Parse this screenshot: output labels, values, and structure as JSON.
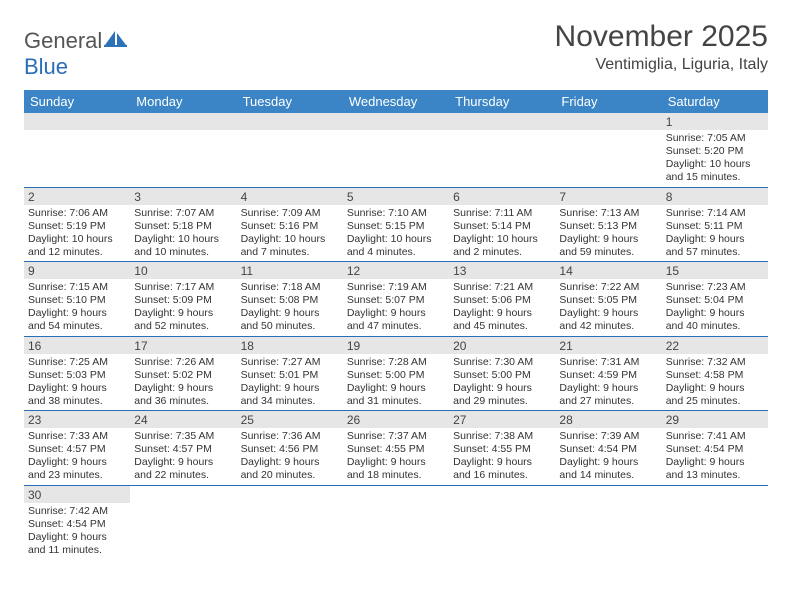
{
  "logo": {
    "general": "General",
    "blue": "Blue"
  },
  "title": "November 2025",
  "location": "Ventimiglia, Liguria, Italy",
  "colors": {
    "header_bg": "#3b85c6",
    "border": "#2a6db8",
    "daynum_bg": "#e6e6e6",
    "text": "#333333"
  },
  "weekdays": [
    "Sunday",
    "Monday",
    "Tuesday",
    "Wednesday",
    "Thursday",
    "Friday",
    "Saturday"
  ],
  "weeks": [
    [
      null,
      null,
      null,
      null,
      null,
      null,
      {
        "d": "1",
        "sr": "7:05 AM",
        "ss": "5:20 PM",
        "dl": "10 hours and 15 minutes."
      }
    ],
    [
      {
        "d": "2",
        "sr": "7:06 AM",
        "ss": "5:19 PM",
        "dl": "10 hours and 12 minutes."
      },
      {
        "d": "3",
        "sr": "7:07 AM",
        "ss": "5:18 PM",
        "dl": "10 hours and 10 minutes."
      },
      {
        "d": "4",
        "sr": "7:09 AM",
        "ss": "5:16 PM",
        "dl": "10 hours and 7 minutes."
      },
      {
        "d": "5",
        "sr": "7:10 AM",
        "ss": "5:15 PM",
        "dl": "10 hours and 4 minutes."
      },
      {
        "d": "6",
        "sr": "7:11 AM",
        "ss": "5:14 PM",
        "dl": "10 hours and 2 minutes."
      },
      {
        "d": "7",
        "sr": "7:13 AM",
        "ss": "5:13 PM",
        "dl": "9 hours and 59 minutes."
      },
      {
        "d": "8",
        "sr": "7:14 AM",
        "ss": "5:11 PM",
        "dl": "9 hours and 57 minutes."
      }
    ],
    [
      {
        "d": "9",
        "sr": "7:15 AM",
        "ss": "5:10 PM",
        "dl": "9 hours and 54 minutes."
      },
      {
        "d": "10",
        "sr": "7:17 AM",
        "ss": "5:09 PM",
        "dl": "9 hours and 52 minutes."
      },
      {
        "d": "11",
        "sr": "7:18 AM",
        "ss": "5:08 PM",
        "dl": "9 hours and 50 minutes."
      },
      {
        "d": "12",
        "sr": "7:19 AM",
        "ss": "5:07 PM",
        "dl": "9 hours and 47 minutes."
      },
      {
        "d": "13",
        "sr": "7:21 AM",
        "ss": "5:06 PM",
        "dl": "9 hours and 45 minutes."
      },
      {
        "d": "14",
        "sr": "7:22 AM",
        "ss": "5:05 PM",
        "dl": "9 hours and 42 minutes."
      },
      {
        "d": "15",
        "sr": "7:23 AM",
        "ss": "5:04 PM",
        "dl": "9 hours and 40 minutes."
      }
    ],
    [
      {
        "d": "16",
        "sr": "7:25 AM",
        "ss": "5:03 PM",
        "dl": "9 hours and 38 minutes."
      },
      {
        "d": "17",
        "sr": "7:26 AM",
        "ss": "5:02 PM",
        "dl": "9 hours and 36 minutes."
      },
      {
        "d": "18",
        "sr": "7:27 AM",
        "ss": "5:01 PM",
        "dl": "9 hours and 34 minutes."
      },
      {
        "d": "19",
        "sr": "7:28 AM",
        "ss": "5:00 PM",
        "dl": "9 hours and 31 minutes."
      },
      {
        "d": "20",
        "sr": "7:30 AM",
        "ss": "5:00 PM",
        "dl": "9 hours and 29 minutes."
      },
      {
        "d": "21",
        "sr": "7:31 AM",
        "ss": "4:59 PM",
        "dl": "9 hours and 27 minutes."
      },
      {
        "d": "22",
        "sr": "7:32 AM",
        "ss": "4:58 PM",
        "dl": "9 hours and 25 minutes."
      }
    ],
    [
      {
        "d": "23",
        "sr": "7:33 AM",
        "ss": "4:57 PM",
        "dl": "9 hours and 23 minutes."
      },
      {
        "d": "24",
        "sr": "7:35 AM",
        "ss": "4:57 PM",
        "dl": "9 hours and 22 minutes."
      },
      {
        "d": "25",
        "sr": "7:36 AM",
        "ss": "4:56 PM",
        "dl": "9 hours and 20 minutes."
      },
      {
        "d": "26",
        "sr": "7:37 AM",
        "ss": "4:55 PM",
        "dl": "9 hours and 18 minutes."
      },
      {
        "d": "27",
        "sr": "7:38 AM",
        "ss": "4:55 PM",
        "dl": "9 hours and 16 minutes."
      },
      {
        "d": "28",
        "sr": "7:39 AM",
        "ss": "4:54 PM",
        "dl": "9 hours and 14 minutes."
      },
      {
        "d": "29",
        "sr": "7:41 AM",
        "ss": "4:54 PM",
        "dl": "9 hours and 13 minutes."
      }
    ],
    [
      {
        "d": "30",
        "sr": "7:42 AM",
        "ss": "4:54 PM",
        "dl": "9 hours and 11 minutes."
      },
      null,
      null,
      null,
      null,
      null,
      null
    ]
  ],
  "labels": {
    "sunrise": "Sunrise:",
    "sunset": "Sunset:",
    "daylight": "Daylight:"
  }
}
